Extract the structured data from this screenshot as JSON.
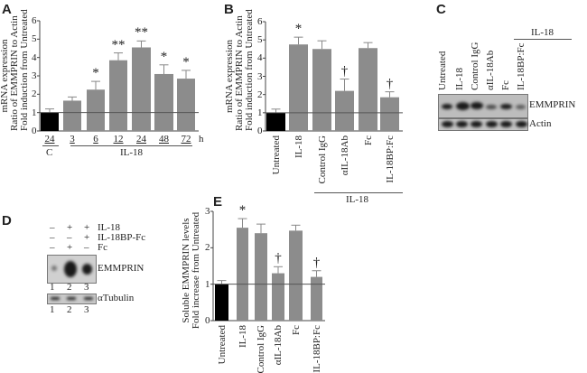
{
  "panels": {
    "A": "A",
    "B": "B",
    "C": "C",
    "D": "D",
    "E": "E"
  },
  "colors": {
    "control": "#000000",
    "treated": "#8c8c8c",
    "baseline": "#555555"
  },
  "chart_data": [
    {
      "id": "A",
      "type": "bar",
      "ylabel": [
        "mRNA expression",
        "Ratio of EMMPRIN to Actin",
        "Fold induction from Untreated"
      ],
      "categories": [
        "24",
        "3",
        "6",
        "12",
        "24",
        "48",
        "72"
      ],
      "x_unit": "h",
      "group_labels": {
        "control": "C",
        "treatment": "IL-18"
      },
      "values": [
        1.0,
        1.65,
        2.25,
        3.85,
        4.55,
        3.1,
        2.85
      ],
      "errors": [
        0.2,
        0.2,
        0.45,
        0.4,
        0.35,
        0.5,
        0.45
      ],
      "markers": [
        "",
        "",
        "*",
        "**",
        "**",
        "*",
        "*"
      ],
      "yticks": [
        "0",
        "1",
        "2",
        "3",
        "4",
        "5",
        "6"
      ],
      "ylim": [
        0,
        6
      ],
      "baseline": 1
    },
    {
      "id": "B",
      "type": "bar",
      "ylabel": [
        "mRNA expression",
        "Ratio of EMMPRIN to Actin",
        "Fold induction from Untreated"
      ],
      "categories": [
        "Untreated",
        "IL-18",
        "Control IgG",
        "αIL-18Ab",
        "Fc",
        "IL-18BP:Fc"
      ],
      "group_label": "IL-18",
      "values": [
        1.0,
        4.75,
        4.5,
        2.2,
        4.55,
        1.85
      ],
      "errors": [
        0.2,
        0.4,
        0.45,
        0.65,
        0.3,
        0.3
      ],
      "markers": [
        "",
        "*",
        "",
        "†",
        "",
        "†"
      ],
      "yticks": [
        "0",
        "1",
        "2",
        "3",
        "4",
        "5",
        "6"
      ],
      "ylim": [
        0,
        6
      ],
      "baseline": 1
    },
    {
      "id": "E",
      "type": "bar",
      "ylabel": [
        "Soluble EMMPRIN levels",
        "Fold increase from Untreated"
      ],
      "categories": [
        "Untreated",
        "IL-18",
        "Control IgG",
        "αIL-18Ab",
        "Fc",
        "IL-18BP:Fc"
      ],
      "values": [
        1.0,
        2.55,
        2.4,
        1.3,
        2.47,
        1.2
      ],
      "errors": [
        0.1,
        0.25,
        0.25,
        0.18,
        0.15,
        0.17
      ],
      "markers": [
        "",
        "*",
        "",
        "†",
        "",
        "†"
      ],
      "yticks": [
        "0",
        "1",
        "2",
        "3"
      ],
      "ylim": [
        0,
        3
      ],
      "baseline": 1
    }
  ],
  "blotC": {
    "group_label": "IL-18",
    "lanes": [
      "Untreated",
      "IL-18",
      "Control IgG",
      "αIL-18Ab",
      "Fc",
      "IL-18BP:Fc"
    ],
    "rows": [
      "EMMPRIN",
      "Actin"
    ]
  },
  "blotD": {
    "conditions": [
      {
        "name": "IL-18",
        "signs": [
          "–",
          "+",
          "+"
        ]
      },
      {
        "name": "IL-18BP-Fc",
        "signs": [
          "–",
          "–",
          "+"
        ]
      },
      {
        "name": "Fc",
        "signs": [
          "–",
          "+",
          "–"
        ]
      }
    ],
    "rows": [
      "EMMPRIN",
      "αTubulin"
    ],
    "lane_numbers": [
      "1",
      "2",
      "3"
    ]
  }
}
